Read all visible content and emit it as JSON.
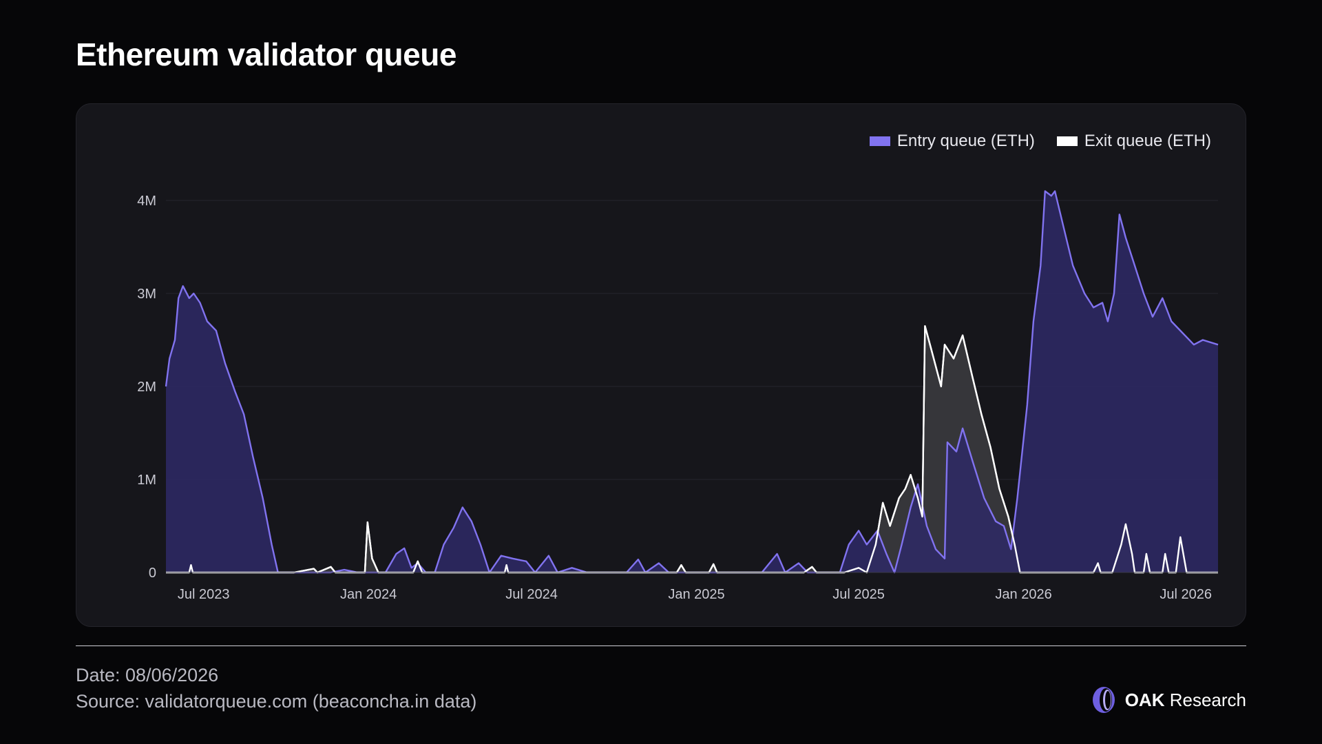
{
  "header": {
    "title": "Ethereum validator queue"
  },
  "colors": {
    "background": "#060608",
    "panel": "#16161b",
    "entry_line": "#8173f0",
    "entry_fill": "#2e2966",
    "exit_line": "#ffffff",
    "exit_fill": "#3a3a3e",
    "grid": "#26262d",
    "tick_text": "#c9c9d2"
  },
  "footer": {
    "date": "Date: 08/06/2026",
    "source": "Source: validatorqueue.com (beaconcha.in data)",
    "brand_bold": "OAK",
    "brand_rest": "Research",
    "brand_icon": "oak-logo-icon"
  },
  "chart_data": {
    "type": "area",
    "title": "Ethereum validator queue",
    "xlabel": "",
    "ylabel": "",
    "x_range": [
      "2023-05-20",
      "2026-08-06"
    ],
    "ylim": [
      0,
      4000000
    ],
    "y_ticks": [
      {
        "value": 0,
        "label": "0"
      },
      {
        "value": 1000000,
        "label": "1M"
      },
      {
        "value": 2000000,
        "label": "2M"
      },
      {
        "value": 3000000,
        "label": "3M"
      },
      {
        "value": 4000000,
        "label": "4M"
      }
    ],
    "x_ticks": [
      {
        "date": "2023-07-01",
        "label": "Jul 2023"
      },
      {
        "date": "2024-01-01",
        "label": "Jan 2024"
      },
      {
        "date": "2024-07-01",
        "label": "Jul 2024"
      },
      {
        "date": "2025-01-01",
        "label": "Jan 2025"
      },
      {
        "date": "2025-07-01",
        "label": "Jul 2025"
      },
      {
        "date": "2026-01-01",
        "label": "Jan 2026"
      },
      {
        "date": "2026-07-01",
        "label": "Jul 2026"
      }
    ],
    "grid": true,
    "legend_position": "top-right",
    "series": [
      {
        "name": "Entry queue (ETH)",
        "points": [
          [
            "2023-05-20",
            2000000
          ],
          [
            "2023-05-24",
            2300000
          ],
          [
            "2023-05-30",
            2500000
          ],
          [
            "2023-06-03",
            2950000
          ],
          [
            "2023-06-08",
            3080000
          ],
          [
            "2023-06-15",
            2950000
          ],
          [
            "2023-06-20",
            3000000
          ],
          [
            "2023-06-27",
            2900000
          ],
          [
            "2023-07-05",
            2700000
          ],
          [
            "2023-07-15",
            2600000
          ],
          [
            "2023-07-25",
            2250000
          ],
          [
            "2023-08-05",
            1950000
          ],
          [
            "2023-08-15",
            1700000
          ],
          [
            "2023-08-25",
            1250000
          ],
          [
            "2023-09-05",
            800000
          ],
          [
            "2023-09-15",
            300000
          ],
          [
            "2023-09-22",
            0
          ],
          [
            "2023-11-20",
            0
          ],
          [
            "2023-12-05",
            30000
          ],
          [
            "2023-12-20",
            0
          ],
          [
            "2024-01-20",
            0
          ],
          [
            "2024-02-01",
            200000
          ],
          [
            "2024-02-10",
            260000
          ],
          [
            "2024-02-18",
            50000
          ],
          [
            "2024-02-25",
            100000
          ],
          [
            "2024-03-05",
            0
          ],
          [
            "2024-03-15",
            0
          ],
          [
            "2024-03-25",
            300000
          ],
          [
            "2024-04-05",
            480000
          ],
          [
            "2024-04-15",
            700000
          ],
          [
            "2024-04-25",
            550000
          ],
          [
            "2024-05-05",
            300000
          ],
          [
            "2024-05-15",
            0
          ],
          [
            "2024-05-28",
            180000
          ],
          [
            "2024-06-10",
            150000
          ],
          [
            "2024-06-25",
            120000
          ],
          [
            "2024-07-05",
            0
          ],
          [
            "2024-07-20",
            180000
          ],
          [
            "2024-07-30",
            0
          ],
          [
            "2024-08-15",
            50000
          ],
          [
            "2024-09-01",
            0
          ],
          [
            "2024-10-15",
            0
          ],
          [
            "2024-10-28",
            140000
          ],
          [
            "2024-11-05",
            0
          ],
          [
            "2024-11-20",
            100000
          ],
          [
            "2024-12-01",
            0
          ],
          [
            "2025-03-15",
            0
          ],
          [
            "2025-04-01",
            200000
          ],
          [
            "2025-04-10",
            0
          ],
          [
            "2025-04-25",
            100000
          ],
          [
            "2025-05-05",
            0
          ],
          [
            "2025-06-10",
            0
          ],
          [
            "2025-06-20",
            300000
          ],
          [
            "2025-07-01",
            450000
          ],
          [
            "2025-07-10",
            300000
          ],
          [
            "2025-07-22",
            450000
          ],
          [
            "2025-08-01",
            200000
          ],
          [
            "2025-08-10",
            0
          ],
          [
            "2025-08-18",
            300000
          ],
          [
            "2025-08-28",
            700000
          ],
          [
            "2025-09-05",
            950000
          ],
          [
            "2025-09-15",
            500000
          ],
          [
            "2025-09-25",
            250000
          ],
          [
            "2025-10-05",
            150000
          ],
          [
            "2025-10-08",
            1400000
          ],
          [
            "2025-10-18",
            1300000
          ],
          [
            "2025-10-25",
            1550000
          ],
          [
            "2025-11-05",
            1200000
          ],
          [
            "2025-11-18",
            800000
          ],
          [
            "2025-12-01",
            550000
          ],
          [
            "2025-12-10",
            500000
          ],
          [
            "2025-12-18",
            250000
          ],
          [
            "2025-12-25",
            800000
          ],
          [
            "2026-01-05",
            1800000
          ],
          [
            "2026-01-12",
            2700000
          ],
          [
            "2026-01-20",
            3300000
          ],
          [
            "2026-01-25",
            4100000
          ],
          [
            "2026-02-01",
            4050000
          ],
          [
            "2026-02-05",
            4100000
          ],
          [
            "2026-02-15",
            3700000
          ],
          [
            "2026-02-25",
            3300000
          ],
          [
            "2026-03-10",
            3000000
          ],
          [
            "2026-03-20",
            2850000
          ],
          [
            "2026-03-30",
            2900000
          ],
          [
            "2026-04-05",
            2700000
          ],
          [
            "2026-04-12",
            3000000
          ],
          [
            "2026-04-18",
            3850000
          ],
          [
            "2026-04-25",
            3600000
          ],
          [
            "2026-05-05",
            3300000
          ],
          [
            "2026-05-15",
            3000000
          ],
          [
            "2026-05-25",
            2750000
          ],
          [
            "2026-06-05",
            2950000
          ],
          [
            "2026-06-15",
            2700000
          ],
          [
            "2026-06-25",
            2600000
          ],
          [
            "2026-07-10",
            2450000
          ],
          [
            "2026-07-20",
            2500000
          ],
          [
            "2026-08-06",
            2450000
          ]
        ]
      },
      {
        "name": "Exit queue (ETH)",
        "points": [
          [
            "2023-05-20",
            0
          ],
          [
            "2023-06-15",
            0
          ],
          [
            "2023-06-17",
            80000
          ],
          [
            "2023-06-19",
            0
          ],
          [
            "2023-10-10",
            0
          ],
          [
            "2023-11-01",
            40000
          ],
          [
            "2023-11-05",
            0
          ],
          [
            "2023-11-20",
            60000
          ],
          [
            "2023-11-25",
            0
          ],
          [
            "2023-12-28",
            0
          ],
          [
            "2023-12-31",
            540000
          ],
          [
            "2024-01-05",
            150000
          ],
          [
            "2024-01-12",
            0
          ],
          [
            "2024-02-20",
            0
          ],
          [
            "2024-02-25",
            120000
          ],
          [
            "2024-03-01",
            0
          ],
          [
            "2024-06-01",
            0
          ],
          [
            "2024-06-03",
            80000
          ],
          [
            "2024-06-05",
            0
          ],
          [
            "2024-12-10",
            0
          ],
          [
            "2024-12-15",
            80000
          ],
          [
            "2024-12-20",
            0
          ],
          [
            "2025-01-15",
            0
          ],
          [
            "2025-01-20",
            90000
          ],
          [
            "2025-01-24",
            0
          ],
          [
            "2025-05-01",
            0
          ],
          [
            "2025-05-10",
            60000
          ],
          [
            "2025-05-15",
            0
          ],
          [
            "2025-06-15",
            0
          ],
          [
            "2025-07-01",
            50000
          ],
          [
            "2025-07-10",
            0
          ],
          [
            "2025-07-20",
            300000
          ],
          [
            "2025-07-28",
            750000
          ],
          [
            "2025-08-05",
            500000
          ],
          [
            "2025-08-15",
            800000
          ],
          [
            "2025-08-22",
            900000
          ],
          [
            "2025-08-28",
            1050000
          ],
          [
            "2025-09-05",
            800000
          ],
          [
            "2025-09-10",
            600000
          ],
          [
            "2025-09-13",
            2650000
          ],
          [
            "2025-09-20",
            2400000
          ],
          [
            "2025-10-01",
            2000000
          ],
          [
            "2025-10-05",
            2450000
          ],
          [
            "2025-10-15",
            2300000
          ],
          [
            "2025-10-25",
            2550000
          ],
          [
            "2025-11-05",
            2100000
          ],
          [
            "2025-11-15",
            1700000
          ],
          [
            "2025-11-25",
            1350000
          ],
          [
            "2025-12-05",
            900000
          ],
          [
            "2025-12-15",
            600000
          ],
          [
            "2025-12-22",
            300000
          ],
          [
            "2025-12-28",
            0
          ],
          [
            "2026-03-20",
            0
          ],
          [
            "2026-03-25",
            100000
          ],
          [
            "2026-03-28",
            0
          ],
          [
            "2026-04-10",
            0
          ],
          [
            "2026-04-20",
            300000
          ],
          [
            "2026-04-25",
            520000
          ],
          [
            "2026-05-02",
            200000
          ],
          [
            "2026-05-05",
            0
          ],
          [
            "2026-05-15",
            0
          ],
          [
            "2026-05-18",
            200000
          ],
          [
            "2026-05-22",
            0
          ],
          [
            "2026-06-05",
            0
          ],
          [
            "2026-06-08",
            200000
          ],
          [
            "2026-06-12",
            0
          ],
          [
            "2026-06-20",
            0
          ],
          [
            "2026-06-25",
            380000
          ],
          [
            "2026-07-02",
            0
          ],
          [
            "2026-08-06",
            0
          ]
        ]
      }
    ]
  }
}
